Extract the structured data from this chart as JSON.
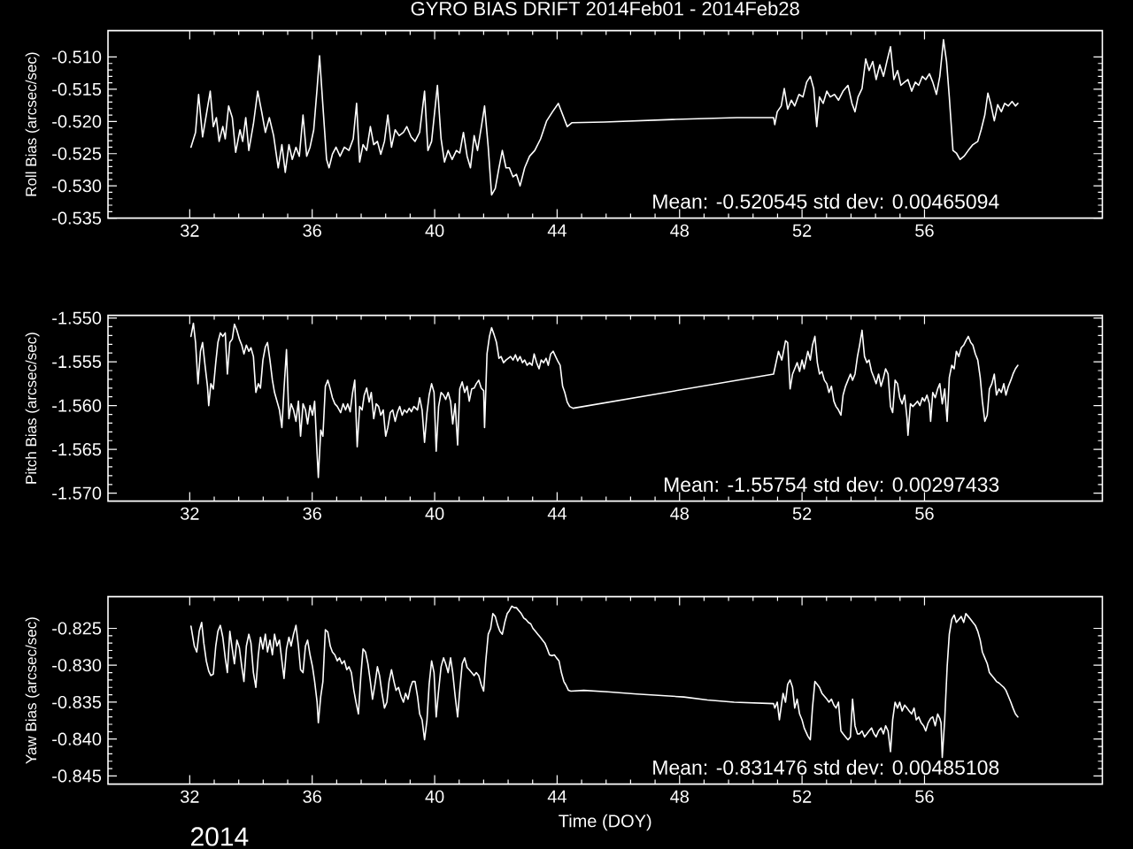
{
  "chart_data": [
    {
      "type": "line",
      "title": "GYRO BIAS DRIFT 2014Feb01 - 2014Feb28",
      "ylabel": "Roll Bias (arcsec/sec)",
      "annotations": [
        "Mean: -0.520545 std dev: 0.00465094"
      ],
      "color": "#ffffff",
      "xlim": [
        29.33,
        61.81
      ],
      "xticks": [
        32,
        36,
        40,
        44,
        48,
        52,
        56
      ],
      "ylim": [
        -0.535,
        -0.5059
      ],
      "yticks": [
        {
          "value": -0.535,
          "label": "-0.535"
        },
        {
          "value": -0.53,
          "label": "-0.530"
        },
        {
          "value": -0.525,
          "label": "-0.525"
        },
        {
          "value": -0.52,
          "label": "-0.520"
        },
        {
          "value": -0.515,
          "label": "-0.515"
        },
        {
          "value": -0.51,
          "label": "-0.510"
        }
      ],
      "x": [
        32.04,
        32.19,
        32.29,
        32.42,
        32.54,
        32.67,
        32.77,
        32.87,
        32.96,
        33.08,
        33.16,
        33.27,
        33.39,
        33.5,
        33.64,
        33.73,
        33.83,
        33.93,
        34.08,
        34.22,
        34.35,
        34.47,
        34.6,
        34.74,
        34.89,
        35.01,
        35.12,
        35.24,
        35.35,
        35.47,
        35.58,
        35.7,
        35.82,
        35.93,
        36.05,
        36.16,
        36.24,
        36.35,
        36.47,
        36.55,
        36.66,
        36.78,
        36.91,
        37.05,
        37.2,
        37.34,
        37.45,
        37.55,
        37.66,
        37.78,
        37.9,
        38.01,
        38.13,
        38.24,
        38.36,
        38.47,
        38.59,
        38.71,
        38.84,
        38.98,
        39.09,
        39.23,
        39.36,
        39.51,
        39.67,
        39.78,
        39.9,
        40.02,
        40.09,
        40.21,
        40.32,
        40.44,
        40.57,
        40.71,
        40.82,
        40.94,
        41.06,
        41.17,
        41.29,
        41.4,
        41.54,
        41.63,
        41.75,
        41.86,
        41.98,
        42.1,
        42.21,
        42.33,
        42.44,
        42.56,
        42.67,
        42.79,
        42.94,
        43.1,
        43.27,
        43.46,
        43.66,
        43.85,
        44.04,
        44.33,
        44.48,
        45.54,
        47.76,
        49.88,
        51.07,
        51.11,
        51.19,
        51.32,
        51.42,
        51.53,
        51.65,
        51.76,
        51.9,
        52.03,
        52.15,
        52.27,
        52.38,
        52.48,
        52.57,
        52.69,
        52.81,
        52.92,
        53.06,
        53.19,
        53.34,
        53.5,
        53.63,
        53.73,
        53.83,
        53.96,
        54.08,
        54.19,
        54.31,
        54.42,
        54.54,
        54.66,
        54.77,
        54.89,
        55.0,
        55.12,
        55.23,
        55.35,
        55.46,
        55.58,
        55.7,
        55.81,
        55.93,
        56.04,
        56.16,
        56.27,
        56.39,
        56.5,
        56.62,
        56.72,
        56.81,
        56.93,
        57.04,
        57.16,
        57.29,
        57.43,
        57.58,
        57.74,
        57.85,
        57.97,
        58.07,
        58.16,
        58.28,
        58.39,
        58.51,
        58.62,
        58.74,
        58.86,
        58.97,
        59.05
      ],
      "values": [
        -0.524,
        -0.5217,
        -0.5158,
        -0.5224,
        -0.519,
        -0.5153,
        -0.5208,
        -0.5194,
        -0.5231,
        -0.5208,
        -0.5227,
        -0.5176,
        -0.5194,
        -0.5248,
        -0.5213,
        -0.5231,
        -0.5194,
        -0.5245,
        -0.5204,
        -0.5153,
        -0.5185,
        -0.5217,
        -0.5194,
        -0.5222,
        -0.5272,
        -0.5236,
        -0.5279,
        -0.5236,
        -0.5259,
        -0.524,
        -0.5254,
        -0.519,
        -0.5254,
        -0.524,
        -0.5213,
        -0.5149,
        -0.5098,
        -0.5176,
        -0.5259,
        -0.5272,
        -0.5251,
        -0.524,
        -0.5254,
        -0.524,
        -0.5245,
        -0.5227,
        -0.5172,
        -0.5263,
        -0.5236,
        -0.5245,
        -0.5208,
        -0.5236,
        -0.5231,
        -0.5251,
        -0.5231,
        -0.519,
        -0.524,
        -0.5213,
        -0.5222,
        -0.5217,
        -0.5208,
        -0.5224,
        -0.5231,
        -0.5217,
        -0.5153,
        -0.5245,
        -0.5231,
        -0.5176,
        -0.5144,
        -0.5227,
        -0.5263,
        -0.5245,
        -0.5259,
        -0.5245,
        -0.5249,
        -0.5217,
        -0.5254,
        -0.5272,
        -0.5222,
        -0.5245,
        -0.5204,
        -0.5176,
        -0.524,
        -0.5314,
        -0.5304,
        -0.5272,
        -0.5245,
        -0.5272,
        -0.5272,
        -0.5286,
        -0.5282,
        -0.53,
        -0.5272,
        -0.5254,
        -0.5245,
        -0.5227,
        -0.5199,
        -0.5185,
        -0.5172,
        -0.5208,
        -0.5202,
        -0.5201,
        -0.5197,
        -0.5194,
        -0.5194,
        -0.5205,
        -0.5185,
        -0.5176,
        -0.5149,
        -0.5181,
        -0.5167,
        -0.5176,
        -0.5158,
        -0.5162,
        -0.5139,
        -0.513,
        -0.5149,
        -0.5208,
        -0.5162,
        -0.5172,
        -0.5153,
        -0.5162,
        -0.5158,
        -0.5167,
        -0.5153,
        -0.5144,
        -0.5172,
        -0.5185,
        -0.5162,
        -0.5149,
        -0.5103,
        -0.5121,
        -0.5107,
        -0.5135,
        -0.5112,
        -0.513,
        -0.5107,
        -0.5084,
        -0.5135,
        -0.5121,
        -0.5144,
        -0.5139,
        -0.5135,
        -0.5153,
        -0.5139,
        -0.5144,
        -0.513,
        -0.5135,
        -0.5126,
        -0.5139,
        -0.5158,
        -0.513,
        -0.5073,
        -0.5107,
        -0.5162,
        -0.5245,
        -0.5249,
        -0.5259,
        -0.5254,
        -0.5245,
        -0.5236,
        -0.5231,
        -0.5213,
        -0.519,
        -0.5156,
        -0.5172,
        -0.5199,
        -0.5174,
        -0.5185,
        -0.5172,
        -0.5176,
        -0.5169,
        -0.5176,
        -0.5172
      ]
    },
    {
      "type": "line",
      "ylabel": "Pitch Bias (arcsec/sec)",
      "annotations": [
        "Mean: -1.55754 std dev: 0.00297433"
      ],
      "color": "#ffffff",
      "xlim": [
        29.33,
        61.81
      ],
      "xticks": [
        32,
        36,
        40,
        44,
        48,
        52,
        56
      ],
      "ylim": [
        -1.5709,
        -1.5497
      ],
      "yticks": [
        {
          "value": -1.57,
          "label": "-1.570"
        },
        {
          "value": -1.565,
          "label": "-1.565"
        },
        {
          "value": -1.56,
          "label": "-1.560"
        },
        {
          "value": -1.555,
          "label": "-1.555"
        },
        {
          "value": -1.55,
          "label": "-1.550"
        }
      ],
      "x": [
        32.04,
        32.12,
        32.19,
        32.27,
        32.35,
        32.42,
        32.5,
        32.58,
        32.62,
        32.69,
        32.77,
        32.85,
        32.92,
        33.0,
        33.08,
        33.16,
        33.23,
        33.31,
        33.39,
        33.46,
        33.54,
        33.62,
        33.7,
        33.77,
        33.85,
        33.93,
        34.0,
        34.08,
        34.16,
        34.24,
        34.31,
        34.39,
        34.47,
        34.54,
        34.62,
        34.7,
        34.77,
        34.85,
        34.93,
        35.01,
        35.08,
        35.16,
        35.24,
        35.31,
        35.39,
        35.47,
        35.55,
        35.62,
        35.7,
        35.78,
        35.85,
        35.93,
        36.01,
        36.08,
        36.16,
        36.2,
        36.28,
        36.35,
        36.43,
        36.51,
        36.59,
        36.66,
        36.74,
        36.82,
        36.93,
        37.01,
        37.09,
        37.16,
        37.24,
        37.32,
        37.39,
        37.47,
        37.55,
        37.63,
        37.7,
        37.78,
        37.86,
        37.93,
        38.01,
        38.09,
        38.17,
        38.24,
        38.32,
        38.4,
        38.47,
        38.55,
        38.63,
        38.71,
        38.78,
        38.86,
        38.94,
        39.01,
        39.09,
        39.17,
        39.24,
        39.32,
        39.44,
        39.51,
        39.59,
        39.67,
        39.75,
        39.82,
        39.9,
        39.98,
        40.05,
        40.13,
        40.21,
        40.29,
        40.36,
        40.44,
        40.52,
        40.59,
        40.67,
        40.75,
        40.82,
        40.9,
        40.98,
        41.06,
        41.13,
        41.21,
        41.29,
        41.36,
        41.44,
        41.52,
        41.6,
        41.63,
        41.71,
        41.79,
        41.86,
        41.94,
        42.02,
        42.1,
        42.17,
        42.25,
        42.33,
        42.48,
        42.56,
        42.64,
        42.71,
        42.79,
        42.87,
        42.94,
        43.02,
        43.1,
        43.18,
        43.25,
        43.33,
        43.41,
        43.48,
        43.56,
        43.64,
        43.71,
        43.79,
        43.87,
        43.95,
        44.02,
        44.1,
        44.18,
        44.25,
        44.33,
        44.41,
        44.52,
        51.07,
        51.15,
        51.23,
        51.34,
        51.46,
        51.53,
        51.61,
        51.69,
        51.76,
        51.84,
        51.92,
        52.0,
        52.07,
        52.19,
        52.27,
        52.34,
        52.42,
        52.5,
        52.57,
        52.65,
        52.73,
        52.81,
        52.88,
        52.96,
        53.04,
        53.11,
        53.19,
        53.27,
        53.34,
        53.42,
        53.5,
        53.58,
        53.65,
        53.73,
        53.81,
        53.88,
        53.96,
        54.04,
        54.12,
        54.19,
        54.27,
        54.35,
        54.42,
        54.5,
        54.58,
        54.66,
        54.73,
        54.81,
        54.89,
        54.96,
        55.04,
        55.12,
        55.19,
        55.27,
        55.35,
        55.43,
        55.46,
        55.54,
        55.62,
        55.7,
        55.77,
        55.85,
        55.93,
        56.0,
        56.08,
        56.16,
        56.2,
        56.27,
        56.35,
        56.43,
        56.5,
        56.58,
        56.66,
        56.74,
        56.81,
        56.89,
        56.97,
        57.04,
        57.12,
        57.2,
        57.28,
        57.35,
        57.43,
        57.51,
        57.58,
        57.66,
        57.74,
        57.82,
        57.89,
        57.97,
        58.05,
        58.12,
        58.2,
        58.28,
        58.35,
        58.43,
        58.51,
        58.59,
        58.66,
        58.74,
        58.82,
        58.89,
        58.97,
        59.05
      ],
      "values": [
        -1.5521,
        -1.5506,
        -1.5528,
        -1.5575,
        -1.5538,
        -1.5528,
        -1.5554,
        -1.5578,
        -1.56,
        -1.5575,
        -1.5581,
        -1.5551,
        -1.5528,
        -1.5517,
        -1.5521,
        -1.5517,
        -1.5564,
        -1.5528,
        -1.5524,
        -1.5507,
        -1.5514,
        -1.5524,
        -1.5531,
        -1.5541,
        -1.5531,
        -1.5538,
        -1.5534,
        -1.5544,
        -1.5585,
        -1.5575,
        -1.558,
        -1.5548,
        -1.5533,
        -1.5528,
        -1.5548,
        -1.5571,
        -1.5585,
        -1.5595,
        -1.5605,
        -1.5625,
        -1.5581,
        -1.5536,
        -1.5615,
        -1.5598,
        -1.5605,
        -1.5618,
        -1.5595,
        -1.5635,
        -1.5598,
        -1.5605,
        -1.5621,
        -1.56,
        -1.5611,
        -1.5595,
        -1.5655,
        -1.5682,
        -1.5628,
        -1.5635,
        -1.5578,
        -1.5571,
        -1.5581,
        -1.5591,
        -1.5598,
        -1.5601,
        -1.5608,
        -1.5598,
        -1.5605,
        -1.5598,
        -1.5607,
        -1.5585,
        -1.5571,
        -1.5647,
        -1.5601,
        -1.5605,
        -1.5588,
        -1.558,
        -1.5596,
        -1.5585,
        -1.5615,
        -1.5598,
        -1.5601,
        -1.5611,
        -1.5605,
        -1.5635,
        -1.5625,
        -1.5608,
        -1.5605,
        -1.5618,
        -1.5608,
        -1.5601,
        -1.5611,
        -1.5605,
        -1.5608,
        -1.5603,
        -1.5607,
        -1.5601,
        -1.5605,
        -1.5591,
        -1.5605,
        -1.5642,
        -1.5608,
        -1.5588,
        -1.5575,
        -1.5585,
        -1.5652,
        -1.5601,
        -1.5585,
        -1.5588,
        -1.5593,
        -1.5585,
        -1.5595,
        -1.5621,
        -1.5598,
        -1.5645,
        -1.5581,
        -1.5573,
        -1.5585,
        -1.5578,
        -1.5595,
        -1.5581,
        -1.558,
        -1.5575,
        -1.5571,
        -1.558,
        -1.5583,
        -1.5625,
        -1.5541,
        -1.5521,
        -1.5511,
        -1.5519,
        -1.5528,
        -1.5546,
        -1.5544,
        -1.5551,
        -1.5548,
        -1.5544,
        -1.5548,
        -1.5542,
        -1.5549,
        -1.5544,
        -1.5551,
        -1.5548,
        -1.5554,
        -1.5551,
        -1.5554,
        -1.5541,
        -1.5551,
        -1.5558,
        -1.5548,
        -1.5551,
        -1.5546,
        -1.5554,
        -1.5541,
        -1.5538,
        -1.5544,
        -1.5549,
        -1.5554,
        -1.5578,
        -1.5585,
        -1.5596,
        -1.5601,
        -1.5603,
        -1.5564,
        -1.5551,
        -1.5538,
        -1.5548,
        -1.5526,
        -1.5528,
        -1.5581,
        -1.5564,
        -1.5558,
        -1.5551,
        -1.5561,
        -1.5548,
        -1.5558,
        -1.5538,
        -1.5548,
        -1.5531,
        -1.5521,
        -1.5551,
        -1.5564,
        -1.5561,
        -1.5571,
        -1.5575,
        -1.5585,
        -1.5578,
        -1.5595,
        -1.5601,
        -1.5605,
        -1.5611,
        -1.5588,
        -1.5578,
        -1.5571,
        -1.5564,
        -1.5571,
        -1.5564,
        -1.5544,
        -1.5531,
        -1.5514,
        -1.5544,
        -1.5551,
        -1.5548,
        -1.5561,
        -1.5568,
        -1.5575,
        -1.5564,
        -1.5578,
        -1.5568,
        -1.5558,
        -1.5564,
        -1.5601,
        -1.5608,
        -1.5571,
        -1.5575,
        -1.5591,
        -1.5598,
        -1.5588,
        -1.5615,
        -1.5634,
        -1.5598,
        -1.5601,
        -1.5598,
        -1.5595,
        -1.56,
        -1.5591,
        -1.5595,
        -1.5588,
        -1.5598,
        -1.5618,
        -1.5585,
        -1.5591,
        -1.5581,
        -1.5575,
        -1.5598,
        -1.5581,
        -1.5618,
        -1.5568,
        -1.5554,
        -1.5558,
        -1.5538,
        -1.5544,
        -1.5534,
        -1.5531,
        -1.5526,
        -1.5521,
        -1.5528,
        -1.5531,
        -1.5541,
        -1.5548,
        -1.5568,
        -1.5595,
        -1.5618,
        -1.5611,
        -1.5581,
        -1.5575,
        -1.5564,
        -1.5588,
        -1.5581,
        -1.5585,
        -1.5575,
        -1.5588,
        -1.5578,
        -1.5571,
        -1.5564,
        -1.5558,
        -1.5554
      ]
    },
    {
      "type": "line",
      "xlabel": "Time (DOY)",
      "ylabel": "Yaw Bias (arcsec/sec)",
      "annotations": [
        "Mean: -0.831476 std dev: 0.00485108",
        "2014"
      ],
      "color": "#ffffff",
      "xlim": [
        29.33,
        61.81
      ],
      "xticks": [
        32,
        36,
        40,
        44,
        48,
        52,
        56
      ],
      "ylim": [
        -0.8461,
        -0.8207
      ],
      "yticks": [
        {
          "value": -0.845,
          "label": "-0.845"
        },
        {
          "value": -0.84,
          "label": "-0.840"
        },
        {
          "value": -0.835,
          "label": "-0.835"
        },
        {
          "value": -0.83,
          "label": "-0.830"
        },
        {
          "value": -0.825,
          "label": "-0.825"
        }
      ],
      "x": [
        32.04,
        32.15,
        32.23,
        32.31,
        32.39,
        32.46,
        32.54,
        32.62,
        32.69,
        32.77,
        32.85,
        32.92,
        33.0,
        33.08,
        33.16,
        33.23,
        33.31,
        33.39,
        33.46,
        33.54,
        33.62,
        33.7,
        33.77,
        33.85,
        33.93,
        34.0,
        34.08,
        34.16,
        34.24,
        34.31,
        34.39,
        34.47,
        34.54,
        34.62,
        34.7,
        34.77,
        34.85,
        34.93,
        35.01,
        35.08,
        35.16,
        35.24,
        35.31,
        35.39,
        35.47,
        35.55,
        35.62,
        35.7,
        35.78,
        35.85,
        35.93,
        36.01,
        36.08,
        36.16,
        36.2,
        36.28,
        36.35,
        36.43,
        36.51,
        36.59,
        36.66,
        36.74,
        36.82,
        36.89,
        36.97,
        37.05,
        37.13,
        37.2,
        37.28,
        37.36,
        37.43,
        37.51,
        37.59,
        37.66,
        37.74,
        37.82,
        37.9,
        37.97,
        38.05,
        38.13,
        38.2,
        38.28,
        38.36,
        38.44,
        38.51,
        38.59,
        38.67,
        38.74,
        38.82,
        38.9,
        38.98,
        39.05,
        39.13,
        39.21,
        39.28,
        39.36,
        39.44,
        39.51,
        39.59,
        39.67,
        39.75,
        39.82,
        39.9,
        39.98,
        40.05,
        40.13,
        40.21,
        40.29,
        40.36,
        40.44,
        40.52,
        40.59,
        40.67,
        40.75,
        40.82,
        40.9,
        40.98,
        41.06,
        41.13,
        41.21,
        41.29,
        41.36,
        41.44,
        41.52,
        41.6,
        41.67,
        41.75,
        41.83,
        41.9,
        41.98,
        42.06,
        42.13,
        42.21,
        42.29,
        42.37,
        42.44,
        42.52,
        42.6,
        42.67,
        42.75,
        42.83,
        42.91,
        42.98,
        43.06,
        43.14,
        43.21,
        43.29,
        43.37,
        43.45,
        43.52,
        43.6,
        43.68,
        43.75,
        43.83,
        43.91,
        43.98,
        44.06,
        44.14,
        44.22,
        44.29,
        44.37,
        44.45,
        44.87,
        45.64,
        46.6,
        48.14,
        48.91,
        49.78,
        51.07,
        51.11,
        51.19,
        51.26,
        51.32,
        51.38,
        51.46,
        51.53,
        51.61,
        51.69,
        51.76,
        51.84,
        51.92,
        52.0,
        52.07,
        52.19,
        52.27,
        52.34,
        52.42,
        52.5,
        52.57,
        52.65,
        52.73,
        52.81,
        52.88,
        52.96,
        53.04,
        53.11,
        53.19,
        53.27,
        53.34,
        53.42,
        53.5,
        53.58,
        53.65,
        53.73,
        53.81,
        53.88,
        53.96,
        54.04,
        54.12,
        54.19,
        54.27,
        54.35,
        54.42,
        54.5,
        54.58,
        54.66,
        54.73,
        54.81,
        54.89,
        54.96,
        55.04,
        55.12,
        55.19,
        55.27,
        55.35,
        55.43,
        55.5,
        55.58,
        55.66,
        55.73,
        55.81,
        55.89,
        55.97,
        56.04,
        56.12,
        56.2,
        56.27,
        56.35,
        56.43,
        56.5,
        56.54,
        56.58,
        56.66,
        56.74,
        56.81,
        56.89,
        56.97,
        57.04,
        57.12,
        57.2,
        57.28,
        57.35,
        57.43,
        57.51,
        57.58,
        57.66,
        57.74,
        57.82,
        57.89,
        57.97,
        58.05,
        58.12,
        58.2,
        58.28,
        58.35,
        58.43,
        58.51,
        58.59,
        58.66,
        58.74,
        58.82,
        58.89,
        58.97,
        59.05
      ],
      "values": [
        -0.8247,
        -0.8274,
        -0.8282,
        -0.8254,
        -0.8242,
        -0.827,
        -0.8294,
        -0.8308,
        -0.8314,
        -0.8312,
        -0.8274,
        -0.8254,
        -0.8246,
        -0.8262,
        -0.829,
        -0.831,
        -0.8254,
        -0.8278,
        -0.8298,
        -0.8266,
        -0.8276,
        -0.8302,
        -0.8322,
        -0.8274,
        -0.8258,
        -0.827,
        -0.831,
        -0.833,
        -0.8286,
        -0.8262,
        -0.8278,
        -0.8258,
        -0.8282,
        -0.8266,
        -0.8286,
        -0.8258,
        -0.8274,
        -0.8266,
        -0.8294,
        -0.8318,
        -0.8278,
        -0.8262,
        -0.8274,
        -0.8258,
        -0.8246,
        -0.8274,
        -0.8306,
        -0.831,
        -0.8274,
        -0.8266,
        -0.8286,
        -0.8302,
        -0.8322,
        -0.835,
        -0.8378,
        -0.8342,
        -0.8322,
        -0.8252,
        -0.8255,
        -0.8274,
        -0.8282,
        -0.8286,
        -0.8294,
        -0.829,
        -0.8298,
        -0.8294,
        -0.8306,
        -0.8302,
        -0.831,
        -0.8334,
        -0.835,
        -0.8366,
        -0.8314,
        -0.8278,
        -0.8282,
        -0.8298,
        -0.8322,
        -0.8346,
        -0.8326,
        -0.8302,
        -0.8314,
        -0.8338,
        -0.8358,
        -0.835,
        -0.8322,
        -0.8306,
        -0.8322,
        -0.8334,
        -0.833,
        -0.8342,
        -0.835,
        -0.8338,
        -0.8346,
        -0.833,
        -0.8322,
        -0.8322,
        -0.8342,
        -0.8366,
        -0.8374,
        -0.8401,
        -0.8374,
        -0.8326,
        -0.8294,
        -0.831,
        -0.837,
        -0.8334,
        -0.8302,
        -0.829,
        -0.8298,
        -0.831,
        -0.829,
        -0.831,
        -0.8342,
        -0.837,
        -0.8334,
        -0.8298,
        -0.829,
        -0.8303,
        -0.8306,
        -0.831,
        -0.8314,
        -0.831,
        -0.8314,
        -0.8326,
        -0.8335,
        -0.8294,
        -0.8258,
        -0.825,
        -0.823,
        -0.8234,
        -0.8246,
        -0.8254,
        -0.8258,
        -0.8242,
        -0.823,
        -0.8226,
        -0.822,
        -0.8222,
        -0.8222,
        -0.8226,
        -0.823,
        -0.8236,
        -0.8238,
        -0.8242,
        -0.8244,
        -0.825,
        -0.8254,
        -0.8258,
        -0.8262,
        -0.8266,
        -0.827,
        -0.8278,
        -0.8286,
        -0.8287,
        -0.8286,
        -0.829,
        -0.8294,
        -0.831,
        -0.8322,
        -0.8327,
        -0.8334,
        -0.8335,
        -0.8334,
        -0.8336,
        -0.8339,
        -0.8343,
        -0.8347,
        -0.835,
        -0.8352,
        -0.8358,
        -0.835,
        -0.8374,
        -0.8356,
        -0.8338,
        -0.835,
        -0.8326,
        -0.832,
        -0.833,
        -0.8358,
        -0.8346,
        -0.8366,
        -0.8374,
        -0.8385,
        -0.8396,
        -0.8401,
        -0.8358,
        -0.8322,
        -0.8326,
        -0.833,
        -0.8338,
        -0.8342,
        -0.8346,
        -0.835,
        -0.8346,
        -0.8354,
        -0.8358,
        -0.835,
        -0.8389,
        -0.8393,
        -0.8397,
        -0.8401,
        -0.8397,
        -0.8346,
        -0.8382,
        -0.8393,
        -0.8393,
        -0.8389,
        -0.8397,
        -0.8393,
        -0.8389,
        -0.8385,
        -0.8393,
        -0.8397,
        -0.8389,
        -0.8385,
        -0.8393,
        -0.8382,
        -0.8389,
        -0.8417,
        -0.8374,
        -0.835,
        -0.8358,
        -0.835,
        -0.8362,
        -0.8354,
        -0.8358,
        -0.8362,
        -0.8366,
        -0.8358,
        -0.8374,
        -0.837,
        -0.8378,
        -0.8382,
        -0.8389,
        -0.8378,
        -0.8372,
        -0.837,
        -0.8382,
        -0.8366,
        -0.8372,
        -0.8378,
        -0.8425,
        -0.8374,
        -0.8302,
        -0.8258,
        -0.8238,
        -0.8232,
        -0.8242,
        -0.8238,
        -0.8234,
        -0.8242,
        -0.823,
        -0.8234,
        -0.8238,
        -0.8242,
        -0.8246,
        -0.8254,
        -0.8266,
        -0.8282,
        -0.829,
        -0.8298,
        -0.831,
        -0.8314,
        -0.8318,
        -0.8322,
        -0.8324,
        -0.8327,
        -0.833,
        -0.8334,
        -0.8342,
        -0.835,
        -0.8358,
        -0.8366,
        -0.837
      ]
    }
  ]
}
